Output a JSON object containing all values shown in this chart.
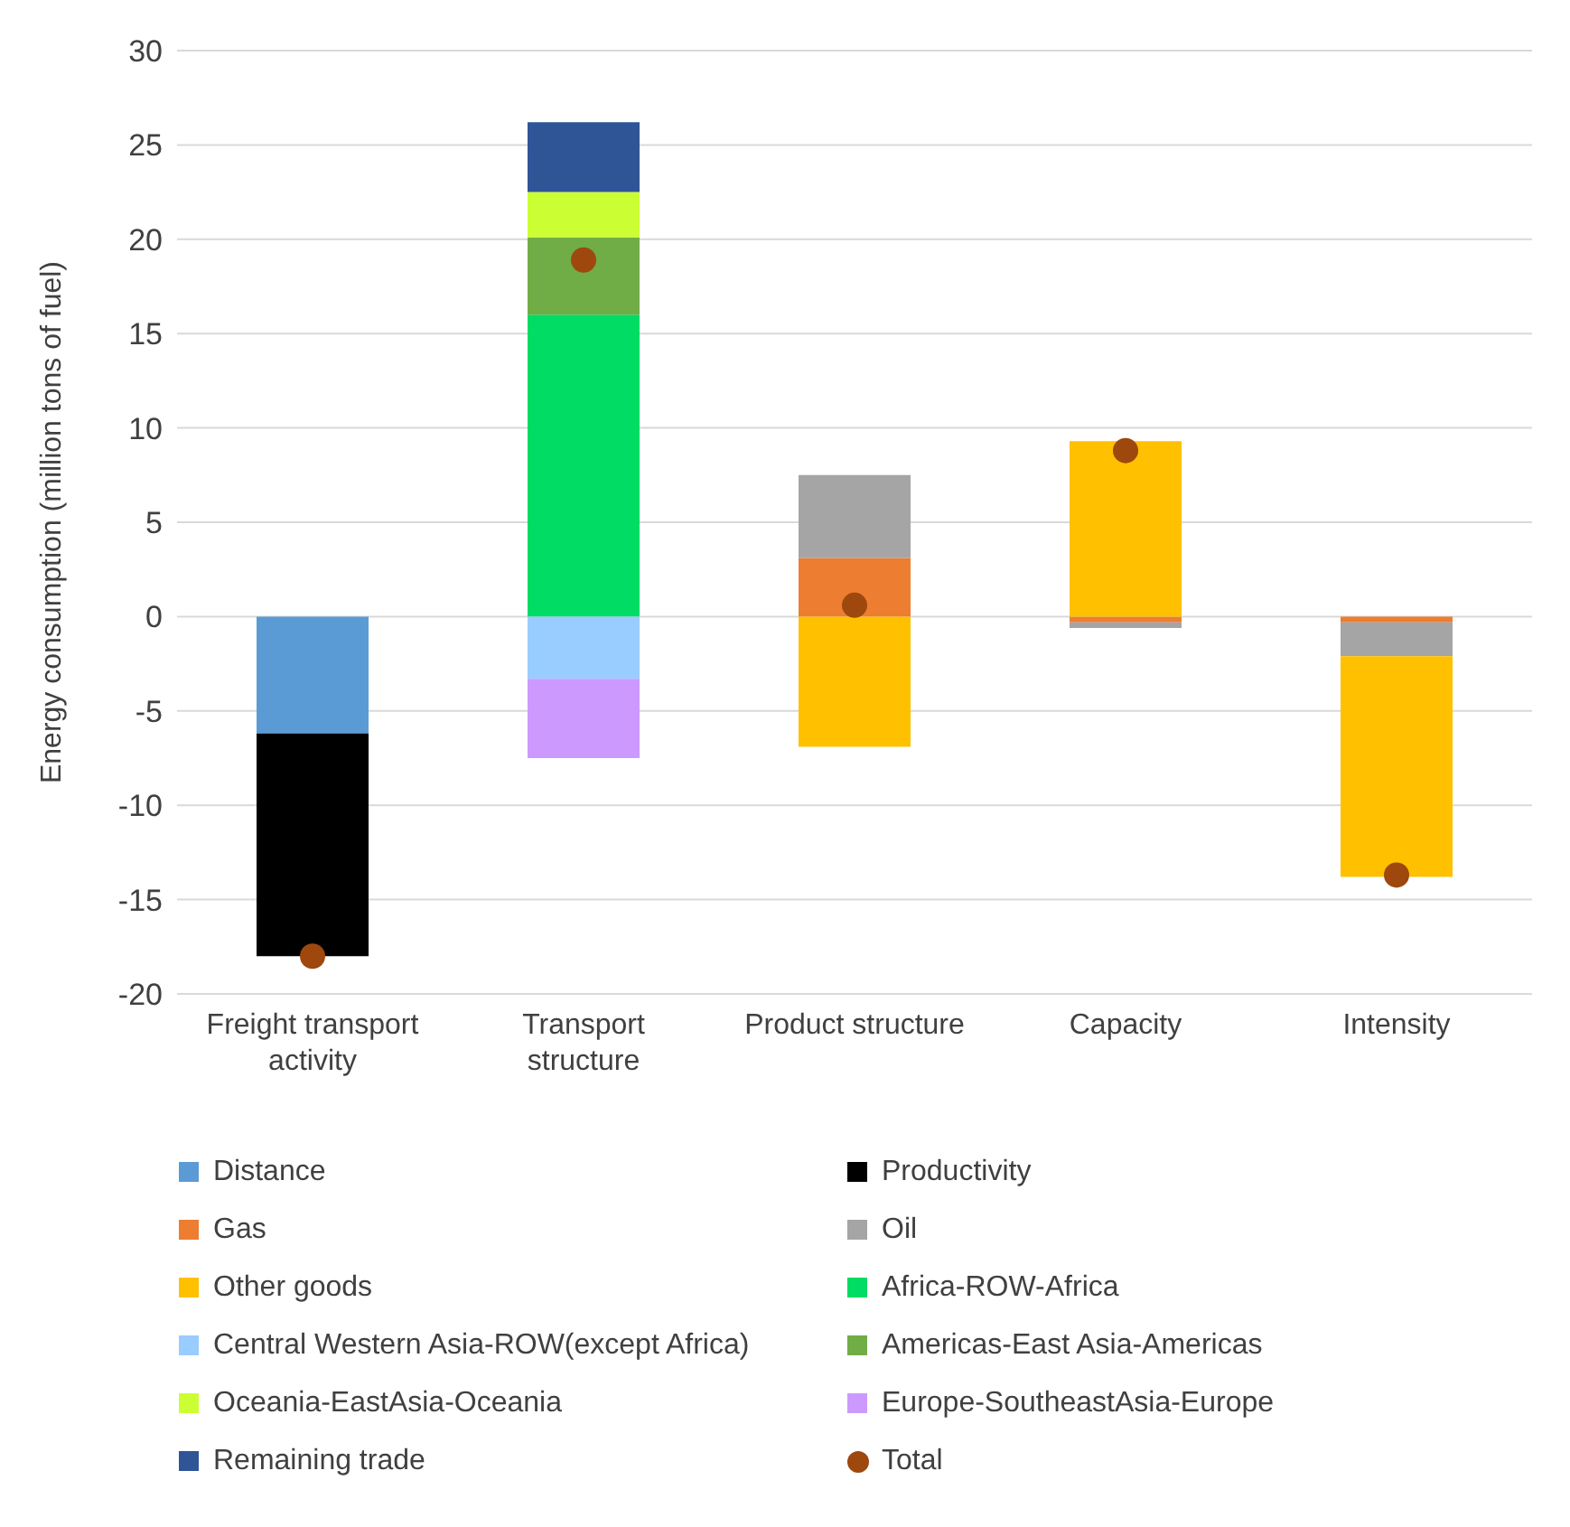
{
  "chart_data": {
    "type": "bar",
    "stacked": true,
    "ylabel": "Energy consumption (million tons of fuel)",
    "categories": [
      "Freight transport activity",
      "Transport structure",
      "Product structure",
      "Capacity",
      "Intensity"
    ],
    "ylim": [
      -20,
      30
    ],
    "yticks": [
      -20,
      -15,
      -10,
      -5,
      0,
      5,
      10,
      15,
      20,
      25,
      30
    ],
    "grid": "y",
    "legend": "bottom",
    "series": [
      {
        "name": "Distance",
        "color": "#5b9bd5",
        "values": [
          -6.2,
          null,
          null,
          null,
          null
        ]
      },
      {
        "name": "Productivity",
        "color": "#000000",
        "values": [
          -11.8,
          null,
          null,
          null,
          null
        ]
      },
      {
        "name": "Gas",
        "color": "#ed7d31",
        "values": [
          null,
          null,
          3.1,
          -0.3,
          -0.3
        ]
      },
      {
        "name": "Oil",
        "color": "#a5a5a5",
        "values": [
          null,
          null,
          4.4,
          -0.3,
          -1.8
        ]
      },
      {
        "name": "Other goods",
        "color": "#ffc000",
        "values": [
          null,
          null,
          -6.9,
          9.3,
          -11.7
        ]
      },
      {
        "name": "Africa-ROW-Africa",
        "color": "#00dc64",
        "values": [
          null,
          16.0,
          null,
          null,
          null
        ]
      },
      {
        "name": "Central Western Asia-ROW(except Africa)",
        "color": "#99ccff",
        "values": [
          null,
          -3.3,
          null,
          null,
          null
        ]
      },
      {
        "name": "Americas-East Asia-Americas",
        "color": "#70ad47",
        "values": [
          null,
          4.1,
          null,
          null,
          null
        ]
      },
      {
        "name": "Oceania-EastAsia-Oceania",
        "color": "#ccff33",
        "values": [
          null,
          2.4,
          null,
          null,
          null
        ]
      },
      {
        "name": "Europe-SoutheastAsia-Europe",
        "color": "#cc99ff",
        "values": [
          null,
          -4.2,
          null,
          null,
          null
        ]
      },
      {
        "name": "Remaining trade",
        "color": "#2f5597",
        "values": [
          null,
          3.7,
          null,
          null,
          null
        ]
      },
      {
        "name": "Total",
        "type": "scatter",
        "color": "#9e480e",
        "marker": "circle",
        "values": [
          -18.0,
          18.9,
          0.6,
          8.8,
          -13.7
        ]
      }
    ]
  }
}
